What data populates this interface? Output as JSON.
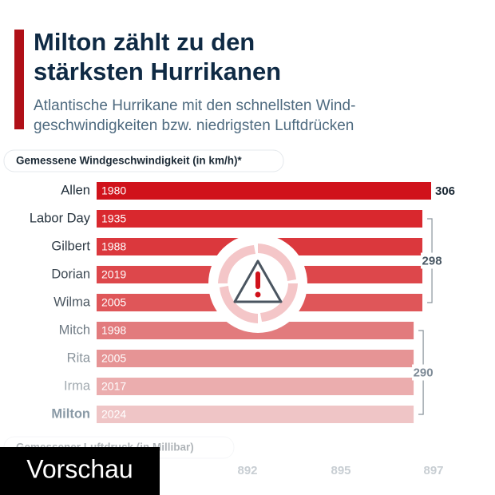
{
  "chart_data": {
    "type": "bar",
    "title": "Milton zählt zu den stärksten Hurrikanen",
    "subtitle": "Atlantische Hurrikane mit den schnellsten Wind-geschwindigkeiten bzw. niedrigsten Luftdrücken",
    "axis_label": "Gemessene Windgeschwindigkeit (in km/h)*",
    "categories": [
      "Allen",
      "Labor Day",
      "Gilbert",
      "Dorian",
      "Wilma",
      "Mitch",
      "Rita",
      "Irma",
      "Milton"
    ],
    "years": [
      "1980",
      "1935",
      "1988",
      "2019",
      "2005",
      "1998",
      "2005",
      "2017",
      "2024"
    ],
    "values": [
      306,
      298,
      298,
      298,
      298,
      290,
      290,
      290,
      290
    ],
    "colors": [
      "#d0121b",
      "#d9282e",
      "#db383d",
      "#dd474b",
      "#df5659",
      "#e27b7d",
      "#e69495",
      "#ebadae",
      "#efc5c6"
    ],
    "xlim": [
      0,
      306
    ],
    "pressure_label": "Gemessener Luftdruck (in Millibar)",
    "pressure_values": [
      892,
      895,
      897
    ],
    "overlay": "Vorschau"
  }
}
